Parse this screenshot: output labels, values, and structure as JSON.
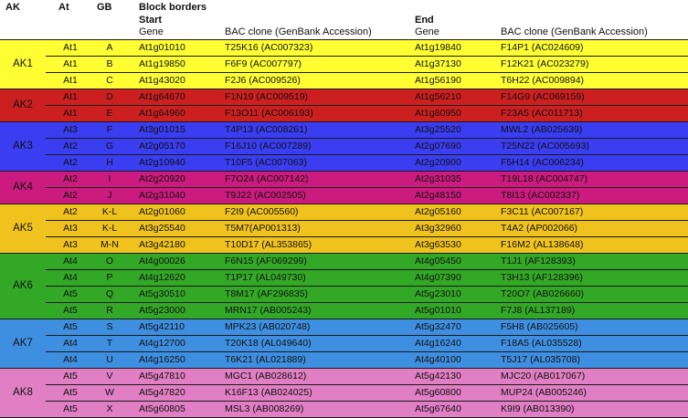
{
  "header": {
    "ak": "AK",
    "at": "At",
    "gb": "GB",
    "block_borders": "Block borders",
    "start": "Start",
    "end": "End",
    "gene": "Gene",
    "bac": "BAC clone (GenBank Accession)"
  },
  "groups": [
    {
      "label": "AK1",
      "color": "#ffff33",
      "rows": [
        {
          "at": "At1",
          "gb": "A",
          "start_gene": "At1g01010",
          "start_bac": "T25K16 (AC007323)",
          "end_gene": "At1g19840",
          "end_bac": "F14P1 (AC024609)"
        },
        {
          "at": "At1",
          "gb": "B",
          "start_gene": "At1g19850",
          "start_bac": "F6F9 (AC007797)",
          "end_gene": "At1g37130",
          "end_bac": "F12K21 (AC023279)"
        },
        {
          "at": "At1",
          "gb": "C",
          "start_gene": "At1g43020",
          "start_bac": "F2J6 (AC009526)",
          "end_gene": "At1g56190",
          "end_bac": "T6H22 (AC009894)"
        }
      ]
    },
    {
      "label": "AK2",
      "color": "#cc1f1f",
      "rows": [
        {
          "at": "At1",
          "gb": "D",
          "start_gene": "At1g64670",
          "start_bac": "F1N19 (AC009519)",
          "end_gene": "At1g56210",
          "end_bac": "F14G9 (AC069159)"
        },
        {
          "at": "At1",
          "gb": "E",
          "start_gene": "At1g64960",
          "start_bac": "F13O11 (AC006193)",
          "end_gene": "At1g80950",
          "end_bac": "F23A5 (AC011713)"
        }
      ]
    },
    {
      "label": "AK3",
      "color": "#3a3df0",
      "rows": [
        {
          "at": "At3",
          "gb": "F",
          "start_gene": "At3g01015",
          "start_bac": "T4P13 (AC008261)",
          "end_gene": "At3g25520",
          "end_bac": "MWL2 (AB025639)"
        },
        {
          "at": "At2",
          "gb": "G",
          "start_gene": "At2g05170",
          "start_bac": "F16J10 (AC007289)",
          "end_gene": "At2g07690",
          "end_bac": "T25N22 (AC005693)"
        },
        {
          "at": "At2",
          "gb": "H",
          "start_gene": "At2g10940",
          "start_bac": "T10F5 (AC007063)",
          "end_gene": "At2g20900",
          "end_bac": "F5H14 (AC006234)"
        }
      ]
    },
    {
      "label": "AK4",
      "color": "#cc1b7e",
      "rows": [
        {
          "at": "At2",
          "gb": "I",
          "start_gene": "At2g20920",
          "start_bac": "F7O24 (AC007142)",
          "end_gene": "At2g31035",
          "end_bac": "T19L18 (AC004747)"
        },
        {
          "at": "At2",
          "gb": "J",
          "start_gene": "At2g31040",
          "start_bac": "T9J22 (AC002505)",
          "end_gene": "At2g48150",
          "end_bac": "T8I13 (AC002337)"
        }
      ]
    },
    {
      "label": "AK5",
      "color": "#f0c21e",
      "rows": [
        {
          "at": "At2",
          "gb": "K-L",
          "start_gene": "At2g01060",
          "start_bac": "F2I9 (AC005560)",
          "end_gene": "At2g05160",
          "end_bac": "F3C11 (AC007167)"
        },
        {
          "at": "At3",
          "gb": "K-L",
          "start_gene": "At3g25540",
          "start_bac": "T5M7(AP001313)",
          "end_gene": "At3g32960",
          "end_bac": "T4A2 (AP002066)"
        },
        {
          "at": "At3",
          "gb": "M-N",
          "start_gene": "At3g42180",
          "start_bac": "T10D17 (AL353865)",
          "end_gene": "At3g63530",
          "end_bac": "F16M2 (AL138648)"
        }
      ]
    },
    {
      "label": "AK6",
      "color": "#33a826",
      "rows": [
        {
          "at": "At4",
          "gb": "O",
          "start_gene": "At4g00026",
          "start_bac": "F6N15 (AF069299)",
          "end_gene": "At4g05450",
          "end_bac": "T1J1 (AF128393)"
        },
        {
          "at": "At4",
          "gb": "P",
          "start_gene": "At4g12620",
          "start_bac": "T1P17 (AL049730)",
          "end_gene": "At4g07390",
          "end_bac": "T3H13 (AF128396)"
        },
        {
          "at": "At5",
          "gb": "Q",
          "start_gene": "At5g30510",
          "start_bac": "T8M17 (AF296835)",
          "end_gene": "At5g23010",
          "end_bac": "T20O7 (AB026660)"
        },
        {
          "at": "At5",
          "gb": "R",
          "start_gene": "At5g23000",
          "start_bac": "MRN17 (AB005243)",
          "end_gene": "At5g01010",
          "end_bac": "F7J8 (AL137189)"
        }
      ]
    },
    {
      "label": "AK7",
      "color": "#3f8fe0",
      "rows": [
        {
          "at": "At5",
          "gb": "S",
          "start_gene": "At5g42110",
          "start_bac": "MPK23 (AB020748)",
          "end_gene": "At5g32470",
          "end_bac": "F5H8 (AB025605)"
        },
        {
          "at": "At4",
          "gb": "T",
          "start_gene": "At4g12700",
          "start_bac": "T20K18 (AL049640)",
          "end_gene": "At4g16240",
          "end_bac": "F18A5 (AL035528)"
        },
        {
          "at": "At4",
          "gb": "U",
          "start_gene": "At4g16250",
          "start_bac": "T6K21 (AL021889)",
          "end_gene": "At4g40100",
          "end_bac": "T5J17 (AL035708)"
        }
      ]
    },
    {
      "label": "AK8",
      "color": "#e07fc4",
      "rows": [
        {
          "at": "At5",
          "gb": "V",
          "start_gene": "At5g47810",
          "start_bac": "MGC1 (AB028612)",
          "end_gene": "At5g42130",
          "end_bac": "MJC20 (AB017067)"
        },
        {
          "at": "At5",
          "gb": "W",
          "start_gene": "At5g47820",
          "start_bac": "K16F13 (AB024025)",
          "end_gene": "At5g60800",
          "end_bac": "MUP24 (AB005246)"
        },
        {
          "at": "At5",
          "gb": "X",
          "start_gene": "At5g60805",
          "start_bac": "MSL3 (AB008269)",
          "end_gene": "At5g67640",
          "end_bac": "K9I9 (AB013390)"
        }
      ]
    }
  ]
}
